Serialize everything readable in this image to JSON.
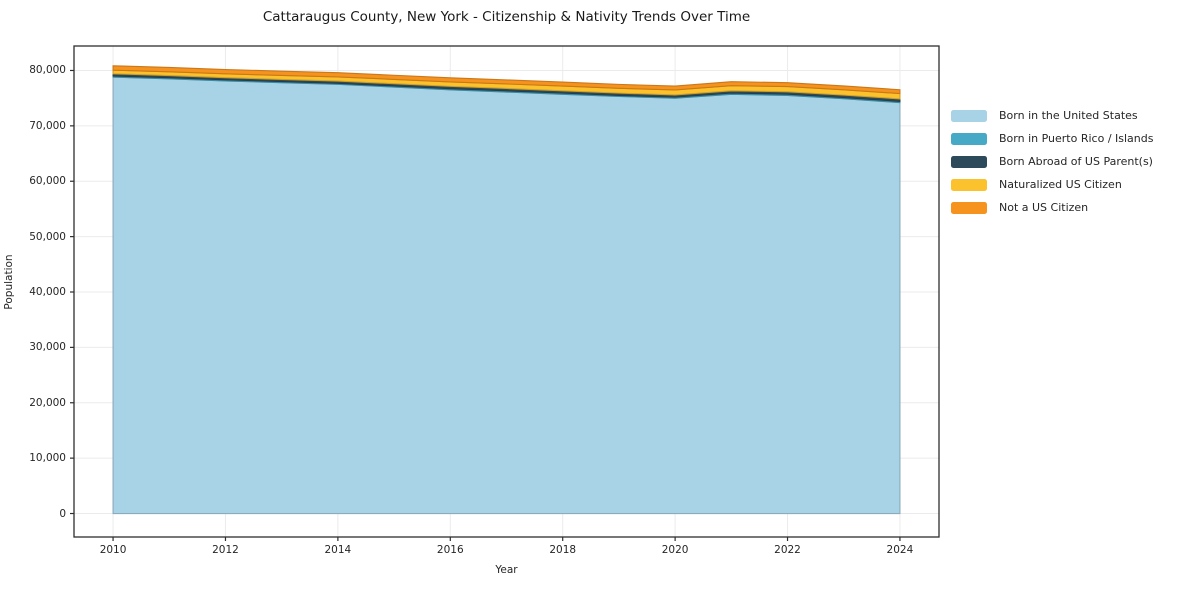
{
  "chart_data": {
    "type": "area",
    "stacked": true,
    "title": "Cattaraugus County, New York - Citizenship & Nativity Trends Over Time",
    "xlabel": "Year",
    "ylabel": "Population",
    "x": [
      2010,
      2011,
      2012,
      2013,
      2014,
      2015,
      2016,
      2017,
      2018,
      2019,
      2020,
      2021,
      2022,
      2023,
      2024
    ],
    "series": [
      {
        "name": "Born in the United States",
        "color": "#a8d2e6",
        "values": [
          78800,
          78500,
          78100,
          77800,
          77500,
          77000,
          76500,
          76100,
          75700,
          75300,
          75000,
          75700,
          75500,
          74900,
          74200
        ]
      },
      {
        "name": "Born in Puerto Rico / Islands",
        "color": "#46aac6",
        "values": [
          200,
          200,
          210,
          200,
          190,
          200,
          210,
          220,
          210,
          200,
          190,
          210,
          220,
          210,
          220
        ]
      },
      {
        "name": "Born Abroad of US Parent(s)",
        "color": "#2d4a5a",
        "values": [
          400,
          390,
          380,
          390,
          400,
          410,
          420,
          430,
          420,
          410,
          400,
          420,
          430,
          440,
          450
        ]
      },
      {
        "name": "Naturalized US Citizen",
        "color": "#fcc22d",
        "values": [
          650,
          670,
          700,
          720,
          750,
          780,
          800,
          820,
          850,
          870,
          890,
          920,
          940,
          950,
          960
        ]
      },
      {
        "name": "Not a US Citizen",
        "color": "#f6921e",
        "values": [
          800,
          790,
          780,
          770,
          760,
          750,
          740,
          730,
          720,
          710,
          700,
          720,
          710,
          700,
          690
        ]
      }
    ],
    "xticks": [
      2010,
      2012,
      2014,
      2016,
      2018,
      2020,
      2022,
      2024
    ],
    "yticks": [
      0,
      10000,
      20000,
      30000,
      40000,
      50000,
      60000,
      70000,
      80000
    ],
    "xlim": [
      2009.305,
      2024.695
    ],
    "ylim": [
      -4240,
      84420
    ],
    "grid": true,
    "grid_color": "#ebebeb",
    "axis_color": "#2e2e2e",
    "legend_position": "right"
  }
}
